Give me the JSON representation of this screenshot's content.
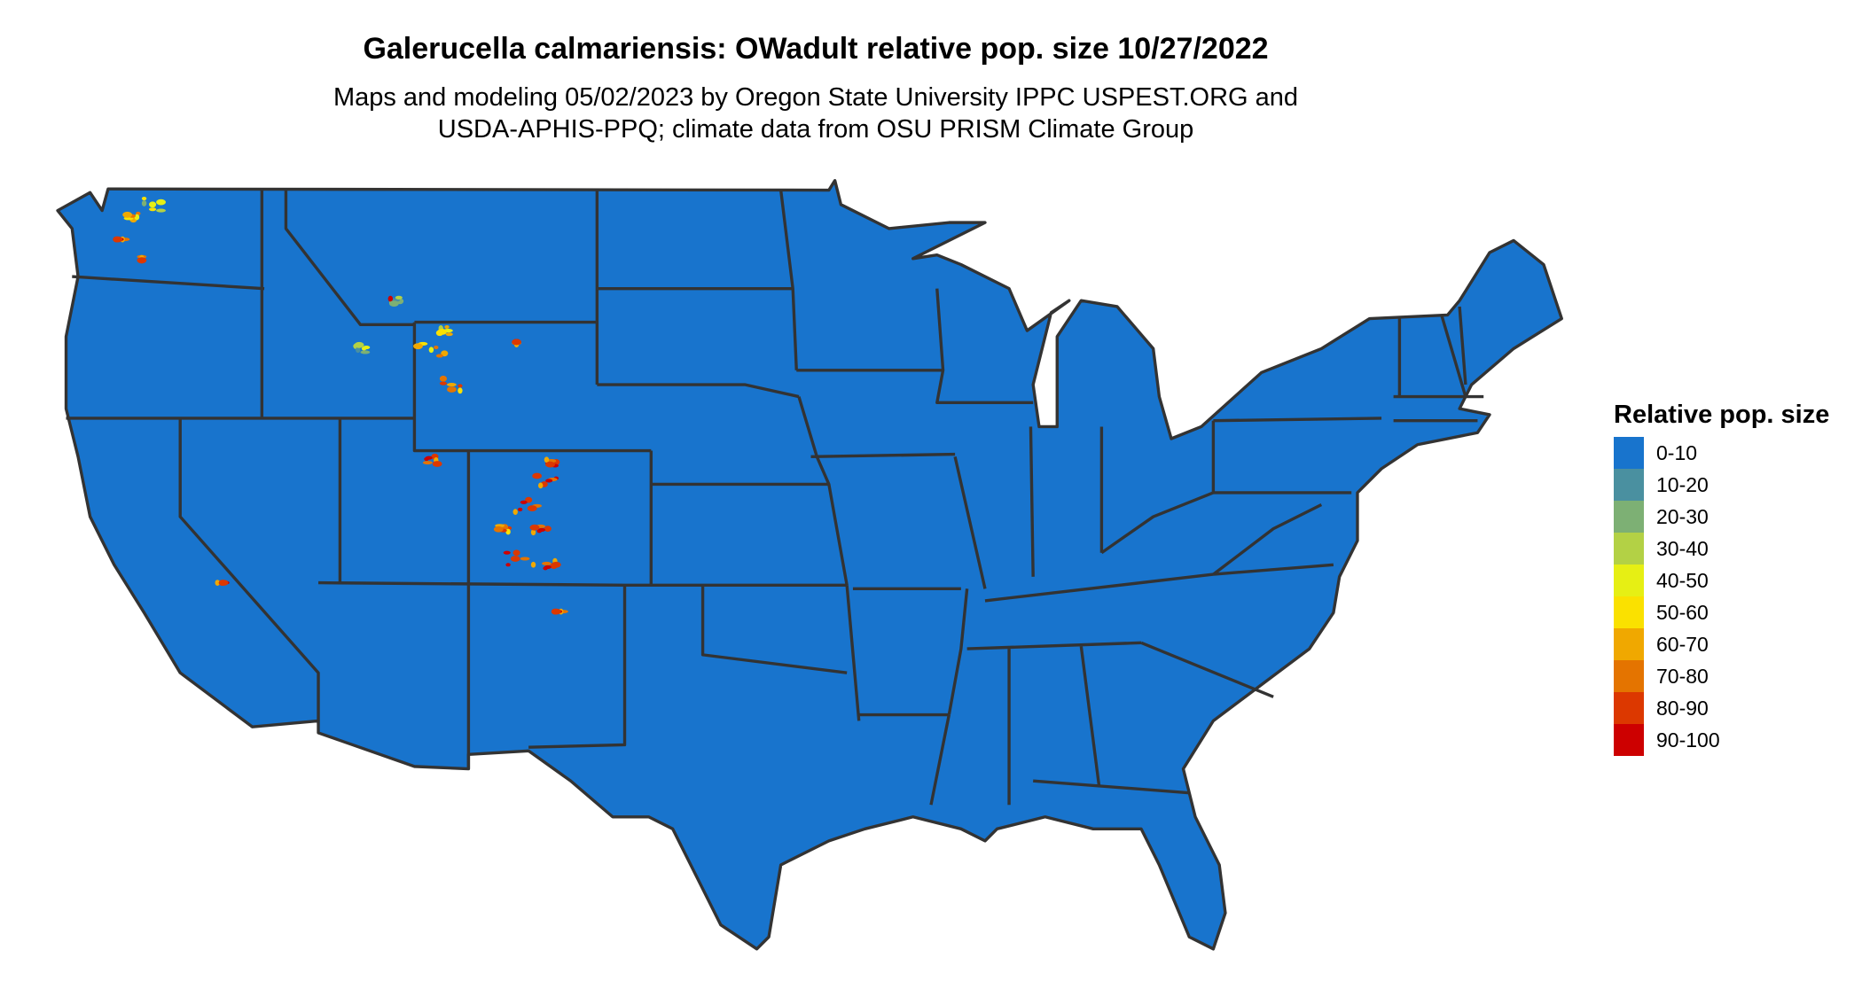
{
  "title": "Galerucella calmariensis: OWadult relative pop. size 10/27/2022",
  "subtitle_line1": "Maps and modeling 05/02/2023 by Oregon State University IPPC USPEST.ORG and",
  "subtitle_line2": "USDA-APHIS-PPQ; climate data from OSU PRISM Climate Group",
  "map": {
    "region": "Contiguous United States",
    "base_fill": "#1874cd",
    "border_color": "#333333",
    "dominant_class": "0-10",
    "hotspot_areas": [
      "Washington",
      "Idaho",
      "Montana",
      "Wyoming",
      "Utah",
      "Colorado",
      "California"
    ]
  },
  "legend": {
    "title": "Relative pop. size",
    "items": [
      {
        "label": "0-10",
        "color": "#1874cd"
      },
      {
        "label": "10-20",
        "color": "#4a90a0"
      },
      {
        "label": "20-30",
        "color": "#7db074"
      },
      {
        "label": "30-40",
        "color": "#b3d145"
      },
      {
        "label": "40-50",
        "color": "#e6ef14"
      },
      {
        "label": "50-60",
        "color": "#fae100"
      },
      {
        "label": "60-70",
        "color": "#f0a800"
      },
      {
        "label": "70-80",
        "color": "#e47400"
      },
      {
        "label": "80-90",
        "color": "#dc3800"
      },
      {
        "label": "90-100",
        "color": "#cd0000"
      }
    ]
  }
}
